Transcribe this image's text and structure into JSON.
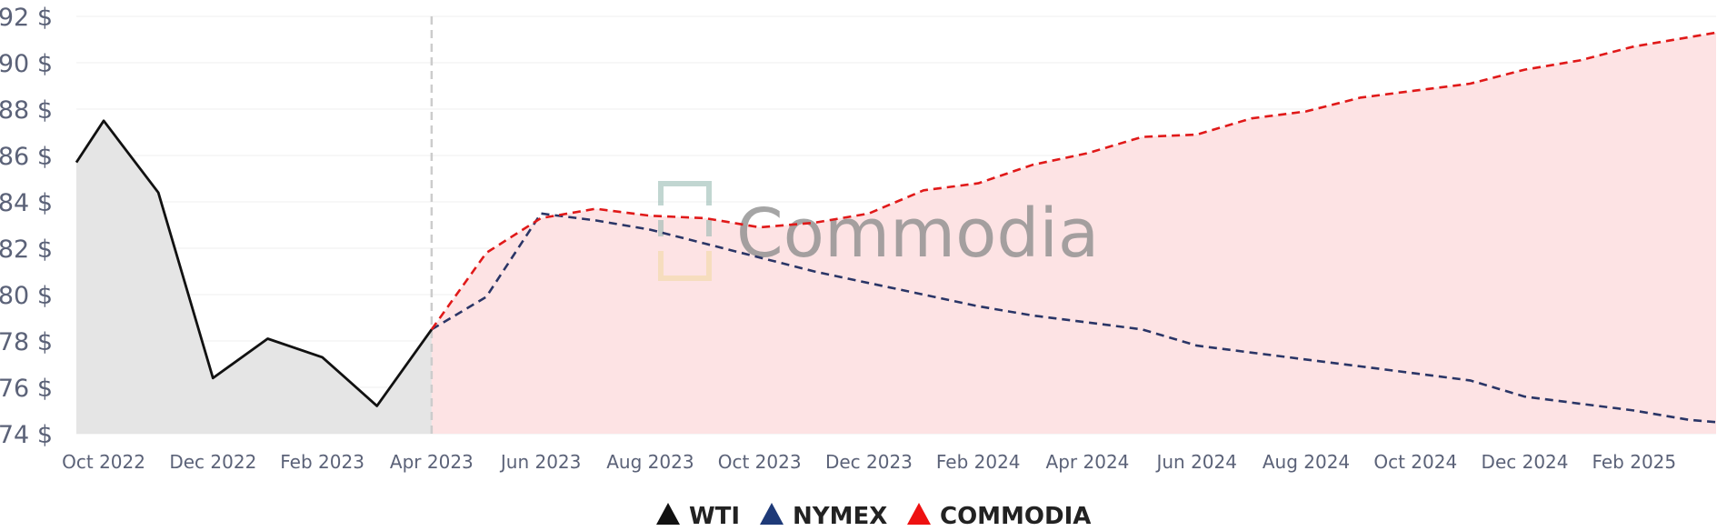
{
  "chart_data": {
    "type": "line",
    "x_labels": [
      "Oct 2022",
      "Dec 2022",
      "Feb 2023",
      "Apr 2023",
      "Jun 2023",
      "Aug 2023",
      "Oct 2023",
      "Dec 2023",
      "Feb 2024",
      "Apr 2024",
      "Jun 2024",
      "Aug 2024",
      "Oct 2024",
      "Dec 2024",
      "Feb 2025"
    ],
    "x_label_month_index": [
      1,
      3,
      5,
      7,
      9,
      11,
      13,
      15,
      17,
      19,
      21,
      23,
      25,
      27,
      29
    ],
    "x_month_range": [
      0.5,
      30.5
    ],
    "split_month_index": 7,
    "ylim": [
      74,
      92
    ],
    "y_ticks": [
      74,
      76,
      78,
      80,
      82,
      84,
      86,
      88,
      90,
      92
    ],
    "y_tick_labels": [
      "74 $",
      "76 $",
      "78 $",
      "80 $",
      "82 $",
      "84 $",
      "86 $",
      "88 $",
      "90 $",
      "92 $"
    ],
    "grid": true,
    "legend_position": "bottom-center",
    "series": [
      {
        "name": "WTI",
        "color": "#111111",
        "style": "solid",
        "fill": "#e5e5e5",
        "points": [
          [
            0.5,
            85.7
          ],
          [
            1,
            87.5
          ],
          [
            2,
            84.4
          ],
          [
            3,
            76.4
          ],
          [
            4,
            78.1
          ],
          [
            5,
            77.3
          ],
          [
            6,
            75.2
          ],
          [
            7,
            78.5
          ]
        ]
      },
      {
        "name": "NYMEX",
        "color": "#2a3566",
        "style": "dashed",
        "points": [
          [
            7,
            78.5
          ],
          [
            8,
            79.9
          ],
          [
            9,
            83.5
          ],
          [
            10,
            83.2
          ],
          [
            11,
            82.8
          ],
          [
            12,
            82.2
          ],
          [
            13,
            81.6
          ],
          [
            14,
            81.0
          ],
          [
            15,
            80.5
          ],
          [
            16,
            80.0
          ],
          [
            17,
            79.5
          ],
          [
            18,
            79.1
          ],
          [
            19,
            78.8
          ],
          [
            20,
            78.5
          ],
          [
            21,
            77.8
          ],
          [
            22,
            77.5
          ],
          [
            23,
            77.2
          ],
          [
            24,
            76.9
          ],
          [
            25,
            76.6
          ],
          [
            26,
            76.3
          ],
          [
            27,
            75.6
          ],
          [
            28,
            75.3
          ],
          [
            29,
            75.0
          ],
          [
            30,
            74.6
          ],
          [
            30.5,
            74.5
          ]
        ]
      },
      {
        "name": "COMMODIA",
        "color": "#e01919",
        "style": "dashed",
        "fill": "#fde3e4",
        "points": [
          [
            7,
            78.5
          ],
          [
            8,
            81.8
          ],
          [
            9,
            83.3
          ],
          [
            10,
            83.7
          ],
          [
            11,
            83.4
          ],
          [
            12,
            83.3
          ],
          [
            13,
            82.9
          ],
          [
            14,
            83.1
          ],
          [
            15,
            83.5
          ],
          [
            16,
            84.5
          ],
          [
            17,
            84.8
          ],
          [
            18,
            85.6
          ],
          [
            19,
            86.1
          ],
          [
            20,
            86.8
          ],
          [
            21,
            86.9
          ],
          [
            22,
            87.6
          ],
          [
            23,
            87.9
          ],
          [
            24,
            88.5
          ],
          [
            25,
            88.8
          ],
          [
            26,
            89.1
          ],
          [
            27,
            89.7
          ],
          [
            28,
            90.1
          ],
          [
            29,
            90.7
          ],
          [
            30,
            91.1
          ],
          [
            30.5,
            91.3
          ]
        ]
      }
    ],
    "watermark": "Commodia"
  },
  "legend": [
    {
      "label": "WTI",
      "color": "#111111"
    },
    {
      "label": "NYMEX",
      "color": "#1e3a78"
    },
    {
      "label": "COMMODIA",
      "color": "#ee1111"
    }
  ]
}
